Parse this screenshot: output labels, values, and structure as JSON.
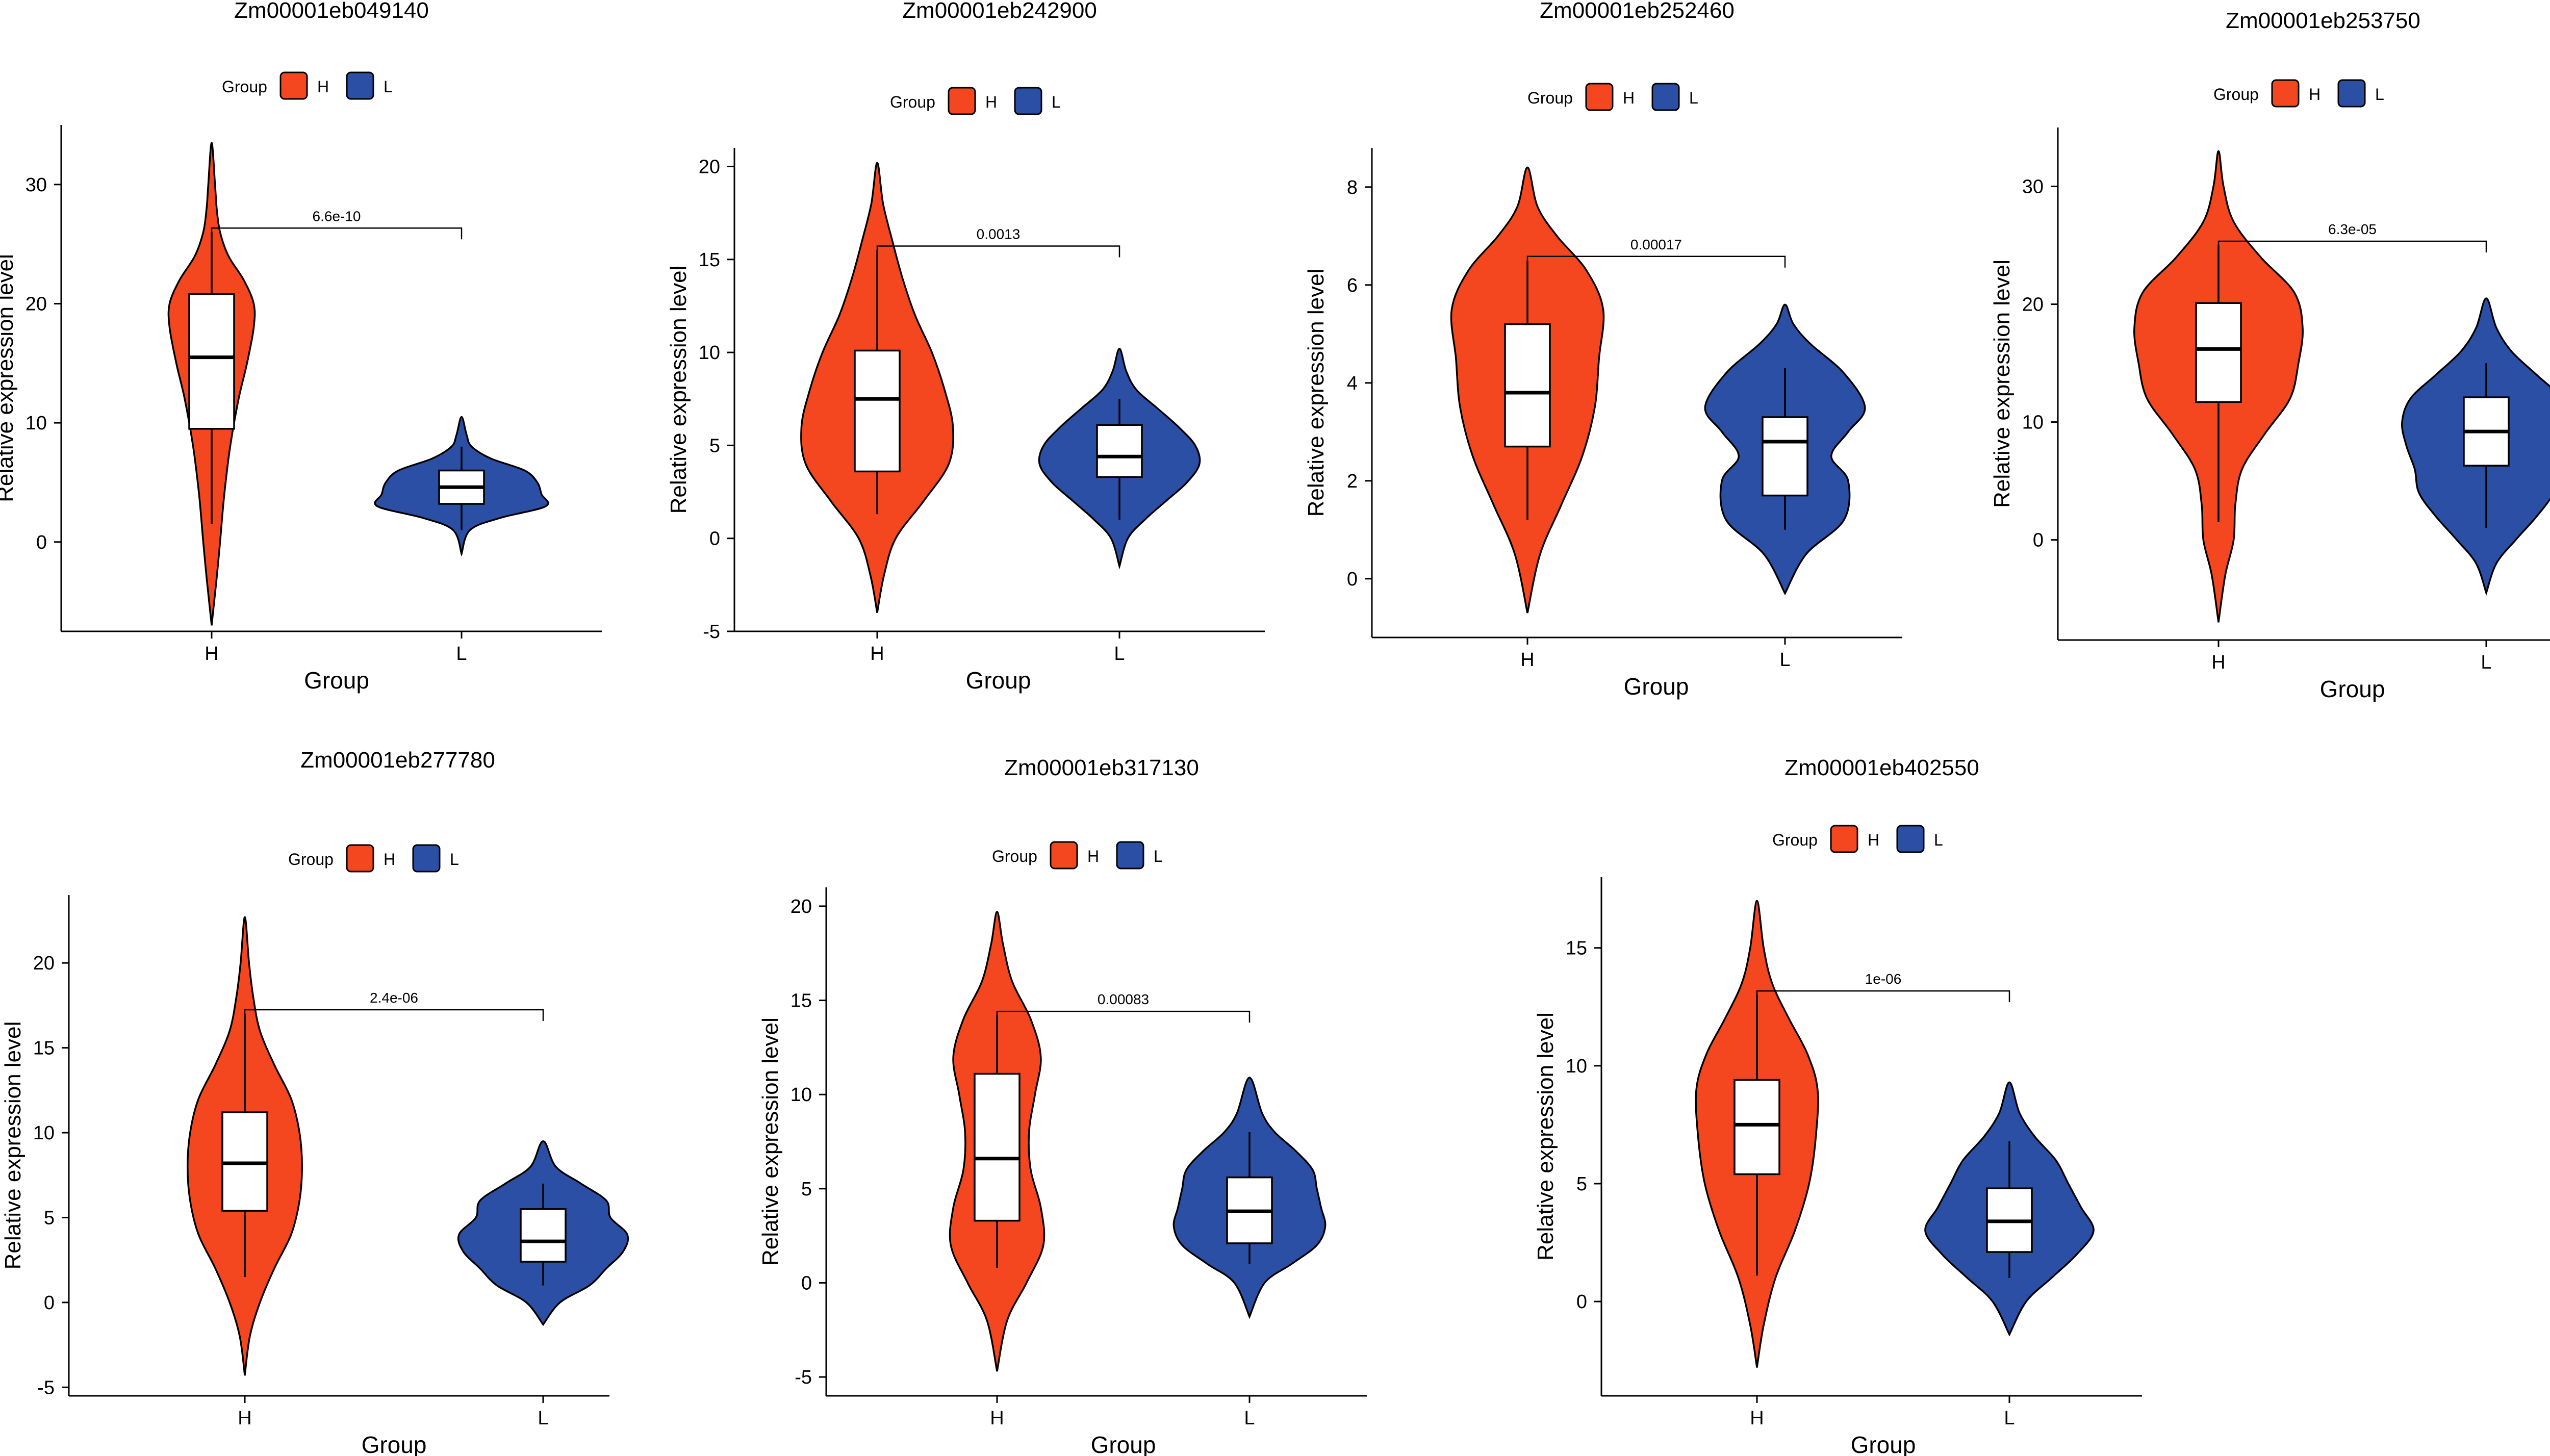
{
  "colors": {
    "H": "#F4471F",
    "L": "#2A4FA5"
  },
  "chart_data": [
    {
      "type": "violin",
      "title": "Zm00001eb049140",
      "xlabel": "Group",
      "ylabel": "Relative expression level",
      "legend": {
        "title": "Group",
        "entries": [
          "H",
          "L"
        ],
        "position": "top"
      },
      "categories": [
        "H",
        "L"
      ],
      "ylim": [
        -7.5,
        35
      ],
      "yticks": [
        0,
        10,
        20,
        30
      ],
      "pvalue": "6.6e-10",
      "groups": [
        {
          "name": "H",
          "violin_min": -7,
          "violin_max": 33.5,
          "box": {
            "q1": 9.5,
            "median": 15.5,
            "q3": 20.8,
            "whisker_low": 1.5,
            "whisker_high": 26
          },
          "density": [
            [
              -7,
              0.02
            ],
            [
              -3,
              0.06
            ],
            [
              0,
              0.1
            ],
            [
              4,
              0.15
            ],
            [
              8,
              0.22
            ],
            [
              12,
              0.32
            ],
            [
              15,
              0.42
            ],
            [
              18,
              0.5
            ],
            [
              20,
              0.5
            ],
            [
              22,
              0.38
            ],
            [
              24,
              0.2
            ],
            [
              26,
              0.1
            ],
            [
              28,
              0.06
            ],
            [
              30,
              0.04
            ],
            [
              33.5,
              0.01
            ]
          ]
        },
        {
          "name": "L",
          "violin_min": -1,
          "violin_max": 10.5,
          "box": {
            "q1": 3.2,
            "median": 4.6,
            "q3": 6,
            "whisker_low": 1,
            "whisker_high": 8
          },
          "density": [
            [
              -1,
              0.02
            ],
            [
              1,
              0.1
            ],
            [
              2,
              0.45
            ],
            [
              3,
              1
            ],
            [
              4,
              0.95
            ],
            [
              5,
              0.9
            ],
            [
              6,
              0.75
            ],
            [
              7,
              0.35
            ],
            [
              8,
              0.12
            ],
            [
              9,
              0.06
            ],
            [
              10.5,
              0.02
            ]
          ]
        }
      ]
    },
    {
      "type": "violin",
      "title": "Zm00001eb242900",
      "xlabel": "Group",
      "ylabel": "Relative expression level",
      "legend": {
        "title": "Group",
        "entries": [
          "H",
          "L"
        ],
        "position": "top"
      },
      "categories": [
        "H",
        "L"
      ],
      "ylim": [
        -5,
        21
      ],
      "yticks": [
        -5,
        0,
        5,
        10,
        15,
        20
      ],
      "pvalue": "0.0013",
      "groups": [
        {
          "name": "H",
          "violin_min": -4,
          "violin_max": 20.2,
          "box": {
            "q1": 3.6,
            "median": 7.5,
            "q3": 10.1,
            "whisker_low": 1.3,
            "whisker_high": 15.5
          },
          "density": [
            [
              -4,
              0.02
            ],
            [
              -2,
              0.08
            ],
            [
              0,
              0.22
            ],
            [
              2,
              0.55
            ],
            [
              4,
              0.85
            ],
            [
              6,
              0.9
            ],
            [
              8,
              0.8
            ],
            [
              10,
              0.65
            ],
            [
              12,
              0.45
            ],
            [
              14,
              0.3
            ],
            [
              16,
              0.18
            ],
            [
              18,
              0.07
            ],
            [
              20.2,
              0.01
            ]
          ]
        },
        {
          "name": "L",
          "violin_min": -1.5,
          "violin_max": 10.2,
          "box": {
            "q1": 3.3,
            "median": 4.4,
            "q3": 6.1,
            "whisker_low": 1,
            "whisker_high": 7.5
          },
          "density": [
            [
              -1.5,
              0.02
            ],
            [
              0,
              0.1
            ],
            [
              1,
              0.3
            ],
            [
              2,
              0.55
            ],
            [
              3,
              0.8
            ],
            [
              4,
              0.95
            ],
            [
              5,
              0.9
            ],
            [
              6,
              0.7
            ],
            [
              7,
              0.45
            ],
            [
              8,
              0.2
            ],
            [
              9,
              0.08
            ],
            [
              10.2,
              0.02
            ]
          ]
        }
      ]
    },
    {
      "type": "violin",
      "title": "Zm00001eb252460",
      "xlabel": "Group",
      "ylabel": "Relative expression level",
      "legend": {
        "title": "Group",
        "entries": [
          "H",
          "L"
        ],
        "position": "top"
      },
      "categories": [
        "H",
        "L"
      ],
      "ylim": [
        -1.2,
        8.8
      ],
      "yticks": [
        0,
        2,
        4,
        6,
        8
      ],
      "pvalue": "0.00017",
      "groups": [
        {
          "name": "H",
          "violin_min": -0.7,
          "violin_max": 8.4,
          "box": {
            "q1": 2.7,
            "median": 3.8,
            "q3": 5.2,
            "whisker_low": 1.2,
            "whisker_high": 6.5
          },
          "density": [
            [
              -0.7,
              0.02
            ],
            [
              0.5,
              0.15
            ],
            [
              1.5,
              0.4
            ],
            [
              2.5,
              0.65
            ],
            [
              3.5,
              0.8
            ],
            [
              4.5,
              0.85
            ],
            [
              5.5,
              0.9
            ],
            [
              6.3,
              0.7
            ],
            [
              7,
              0.35
            ],
            [
              7.6,
              0.12
            ],
            [
              8.4,
              0.01
            ]
          ]
        },
        {
          "name": "L",
          "violin_min": -0.3,
          "violin_max": 5.6,
          "box": {
            "q1": 1.7,
            "median": 2.8,
            "q3": 3.3,
            "whisker_low": 1,
            "whisker_high": 4.3
          },
          "density": [
            [
              -0.3,
              0.02
            ],
            [
              0.5,
              0.25
            ],
            [
              1.2,
              0.7
            ],
            [
              2,
              0.75
            ],
            [
              2.5,
              0.55
            ],
            [
              3,
              0.75
            ],
            [
              3.5,
              0.95
            ],
            [
              4.2,
              0.7
            ],
            [
              4.8,
              0.3
            ],
            [
              5.2,
              0.1
            ],
            [
              5.6,
              0.02
            ]
          ]
        }
      ]
    },
    {
      "type": "violin",
      "title": "Zm00001eb253750",
      "xlabel": "Group",
      "ylabel": "Relative expression level",
      "legend": {
        "title": "Group",
        "entries": [
          "H",
          "L"
        ],
        "position": "top"
      },
      "categories": [
        "H",
        "L"
      ],
      "ylim": [
        -8.5,
        35
      ],
      "yticks": [
        0,
        10,
        20,
        30
      ],
      "pvalue": "6.3e-05",
      "groups": [
        {
          "name": "H",
          "violin_min": -7,
          "violin_max": 33,
          "box": {
            "q1": 11.7,
            "median": 16.2,
            "q3": 20.1,
            "whisker_low": 1.5,
            "whisker_high": 25
          },
          "density": [
            [
              -7,
              0.02
            ],
            [
              -3,
              0.08
            ],
            [
              0,
              0.18
            ],
            [
              3,
              0.2
            ],
            [
              6,
              0.28
            ],
            [
              9,
              0.55
            ],
            [
              12,
              0.85
            ],
            [
              15,
              0.95
            ],
            [
              18,
              1
            ],
            [
              21,
              0.9
            ],
            [
              24,
              0.5
            ],
            [
              27,
              0.18
            ],
            [
              30,
              0.06
            ],
            [
              33,
              0.01
            ]
          ]
        },
        {
          "name": "L",
          "violin_min": -4.5,
          "violin_max": 20.5,
          "box": {
            "q1": 6.3,
            "median": 9.2,
            "q3": 12.1,
            "whisker_low": 1,
            "whisker_high": 15
          },
          "density": [
            [
              -4.5,
              0.02
            ],
            [
              -2,
              0.12
            ],
            [
              0,
              0.35
            ],
            [
              2,
              0.6
            ],
            [
              4,
              0.8
            ],
            [
              6,
              0.85
            ],
            [
              8,
              0.95
            ],
            [
              10,
              1
            ],
            [
              12,
              0.9
            ],
            [
              14,
              0.6
            ],
            [
              16,
              0.3
            ],
            [
              18,
              0.12
            ],
            [
              20.5,
              0.02
            ]
          ]
        }
      ]
    },
    {
      "type": "violin",
      "title": "Zm00001eb277780",
      "xlabel": "Group",
      "ylabel": "Relative expression level",
      "legend": {
        "title": "Group",
        "entries": [
          "H",
          "L"
        ],
        "position": "top"
      },
      "categories": [
        "H",
        "L"
      ],
      "ylim": [
        -5.5,
        24
      ],
      "yticks": [
        -5,
        0,
        5,
        10,
        15,
        20
      ],
      "pvalue": "2.4e-06",
      "groups": [
        {
          "name": "H",
          "violin_min": -4.3,
          "violin_max": 22.7,
          "box": {
            "q1": 5.4,
            "median": 8.2,
            "q3": 11.2,
            "whisker_low": 1.5,
            "whisker_high": 17
          },
          "density": [
            [
              -4.3,
              0.02
            ],
            [
              -2,
              0.06
            ],
            [
              0,
              0.18
            ],
            [
              2,
              0.35
            ],
            [
              4,
              0.55
            ],
            [
              6,
              0.65
            ],
            [
              8,
              0.68
            ],
            [
              10,
              0.65
            ],
            [
              12,
              0.55
            ],
            [
              14,
              0.35
            ],
            [
              16,
              0.18
            ],
            [
              18,
              0.1
            ],
            [
              20,
              0.05
            ],
            [
              22.7,
              0.01
            ]
          ]
        },
        {
          "name": "L",
          "violin_min": -1.3,
          "violin_max": 9.5,
          "box": {
            "q1": 2.4,
            "median": 3.6,
            "q3": 5.5,
            "whisker_low": 1,
            "whisker_high": 7
          },
          "density": [
            [
              -1.3,
              0.02
            ],
            [
              0,
              0.2
            ],
            [
              1,
              0.55
            ],
            [
              2,
              0.75
            ],
            [
              3,
              0.95
            ],
            [
              4,
              1
            ],
            [
              5,
              0.8
            ],
            [
              6,
              0.75
            ],
            [
              7,
              0.45
            ],
            [
              8,
              0.15
            ],
            [
              9.5,
              0.02
            ]
          ]
        }
      ]
    },
    {
      "type": "violin",
      "title": "Zm00001eb317130",
      "xlabel": "Group",
      "ylabel": "Relative expression level",
      "legend": {
        "title": "Group",
        "entries": [
          "H",
          "L"
        ],
        "position": "top"
      },
      "categories": [
        "H",
        "L"
      ],
      "ylim": [
        -6,
        21
      ],
      "yticks": [
        -5,
        0,
        5,
        10,
        15,
        20
      ],
      "pvalue": "0.00083",
      "groups": [
        {
          "name": "H",
          "violin_min": -4.7,
          "violin_max": 19.7,
          "box": {
            "q1": 3.3,
            "median": 6.6,
            "q3": 11.1,
            "whisker_low": 0.8,
            "whisker_high": 14.2
          },
          "density": [
            [
              -4.7,
              0.02
            ],
            [
              -2,
              0.12
            ],
            [
              0,
              0.35
            ],
            [
              2,
              0.55
            ],
            [
              4,
              0.52
            ],
            [
              6,
              0.4
            ],
            [
              8,
              0.38
            ],
            [
              10,
              0.45
            ],
            [
              12,
              0.52
            ],
            [
              14,
              0.4
            ],
            [
              16,
              0.18
            ],
            [
              18,
              0.07
            ],
            [
              19.7,
              0.01
            ]
          ]
        },
        {
          "name": "L",
          "violin_min": -1.8,
          "violin_max": 10.9,
          "box": {
            "q1": 2.1,
            "median": 3.8,
            "q3": 5.6,
            "whisker_low": 1,
            "whisker_high": 8
          },
          "density": [
            [
              -1.8,
              0.02
            ],
            [
              0,
              0.18
            ],
            [
              1,
              0.5
            ],
            [
              2,
              0.8
            ],
            [
              3,
              0.9
            ],
            [
              4,
              0.85
            ],
            [
              5,
              0.8
            ],
            [
              6,
              0.75
            ],
            [
              7,
              0.55
            ],
            [
              8,
              0.3
            ],
            [
              9,
              0.15
            ],
            [
              10.9,
              0.02
            ]
          ]
        }
      ]
    },
    {
      "type": "violin",
      "title": "Zm00001eb402550",
      "xlabel": "Group",
      "ylabel": "Relative expression level",
      "legend": {
        "title": "Group",
        "entries": [
          "H",
          "L"
        ],
        "position": "top"
      },
      "categories": [
        "H",
        "L"
      ],
      "ylim": [
        -4,
        18
      ],
      "yticks": [
        0,
        5,
        10,
        15
      ],
      "pvalue": "1e-06",
      "groups": [
        {
          "name": "H",
          "violin_min": -2.8,
          "violin_max": 17,
          "box": {
            "q1": 5.4,
            "median": 7.5,
            "q3": 9.4,
            "whisker_low": 1.1,
            "whisker_high": 13
          },
          "density": [
            [
              -2.8,
              0.02
            ],
            [
              -1,
              0.08
            ],
            [
              1,
              0.22
            ],
            [
              3,
              0.45
            ],
            [
              5,
              0.62
            ],
            [
              7,
              0.7
            ],
            [
              9,
              0.72
            ],
            [
              10.5,
              0.6
            ],
            [
              12,
              0.38
            ],
            [
              13.5,
              0.18
            ],
            [
              15,
              0.08
            ],
            [
              17,
              0.01
            ]
          ]
        },
        {
          "name": "L",
          "violin_min": -1.4,
          "violin_max": 9.3,
          "box": {
            "q1": 2.1,
            "median": 3.4,
            "q3": 4.8,
            "whisker_low": 1,
            "whisker_high": 6.8
          },
          "density": [
            [
              -1.4,
              0.02
            ],
            [
              0,
              0.2
            ],
            [
              1,
              0.5
            ],
            [
              2,
              0.8
            ],
            [
              3,
              1
            ],
            [
              4,
              0.85
            ],
            [
              5,
              0.7
            ],
            [
              6,
              0.55
            ],
            [
              7,
              0.3
            ],
            [
              8,
              0.12
            ],
            [
              9.3,
              0.02
            ]
          ]
        }
      ]
    }
  ]
}
